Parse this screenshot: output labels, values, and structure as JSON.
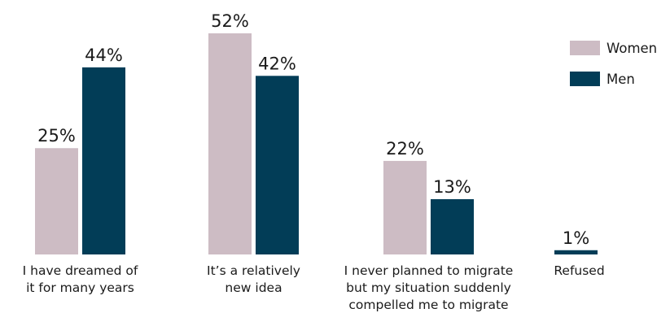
{
  "chart_data": {
    "type": "bar",
    "categories": [
      [
        "I have dreamed of",
        "it for many years"
      ],
      [
        "It’s a relatively",
        "new idea"
      ],
      [
        "I never planned to migrate",
        "but my situation suddenly",
        "compelled me to migrate"
      ],
      [
        "Refused"
      ]
    ],
    "series": [
      {
        "name": "Women",
        "color": "#cdbcc4",
        "values": [
          25,
          52,
          22,
          0
        ],
        "labels": [
          "25%",
          "52%",
          "22%",
          ""
        ]
      },
      {
        "name": "Men",
        "color": "#023d57",
        "values": [
          44,
          42,
          13,
          1
        ],
        "labels": [
          "44%",
          "42%",
          "13%",
          "1%"
        ]
      }
    ],
    "ylim": [
      0,
      52
    ],
    "legend": "top-right",
    "grid": false,
    "title": "",
    "xlabel": "",
    "ylabel": ""
  }
}
